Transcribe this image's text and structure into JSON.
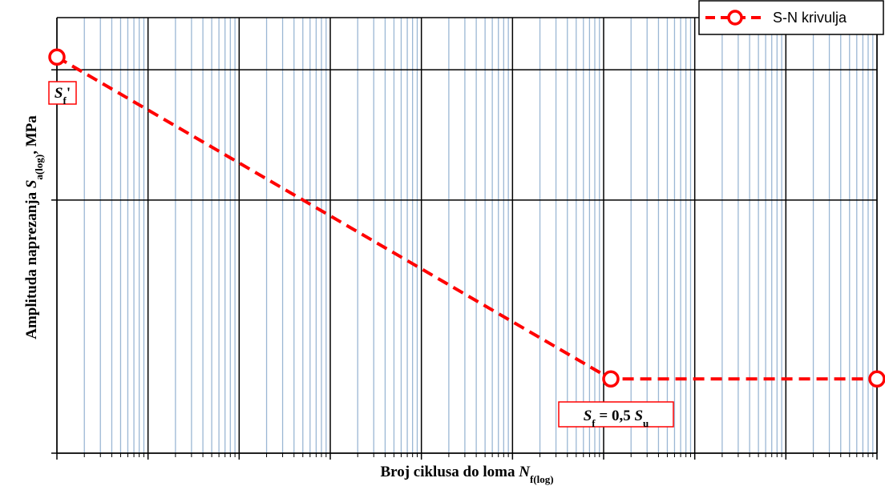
{
  "chart_data": {
    "type": "line",
    "x_label": [
      {
        "text": "Broj ciklusa do loma ",
        "style": "normal"
      },
      {
        "text": "N",
        "style": "italic"
      },
      {
        "text": "f(log)",
        "style": "sub"
      }
    ],
    "y_label": [
      {
        "text": "Amplituda naprezanja ",
        "style": "normal"
      },
      {
        "text": "S",
        "style": "italic"
      },
      {
        "text": "a(log)",
        "style": "sub"
      },
      {
        "text": ", MPa",
        "style": "normal"
      }
    ],
    "x": [
      1,
      1200000,
      1000000000
    ],
    "series": [
      {
        "name": "S-N krivulja",
        "color": "#ff0000",
        "values": [
          1070,
          193,
          193
        ]
      }
    ],
    "xlim": [
      1,
      1000000000
    ],
    "xticks": [
      1,
      10,
      100,
      1000,
      10000,
      100000,
      1000000,
      10000000,
      100000000,
      1000000000
    ],
    "ylim": [
      130,
      1320
    ],
    "yticks": [
      130,
      500,
      1000
    ],
    "xscale": "log",
    "yscale": "log",
    "grid": true,
    "minor_grid": true,
    "legend": "upper right",
    "annotations": [
      [
        {
          "text": "S",
          "style": "italic"
        },
        {
          "text": "f",
          "style": "sub"
        },
        {
          "text": "'",
          "style": "normal"
        }
      ],
      [
        {
          "text": "S",
          "style": "italic"
        },
        {
          "text": "f",
          "style": "sub"
        },
        {
          "text": " = 0,5 ",
          "style": "normal"
        },
        {
          "text": "S",
          "style": "italic"
        },
        {
          "text": "u",
          "style": "sub"
        }
      ]
    ]
  }
}
